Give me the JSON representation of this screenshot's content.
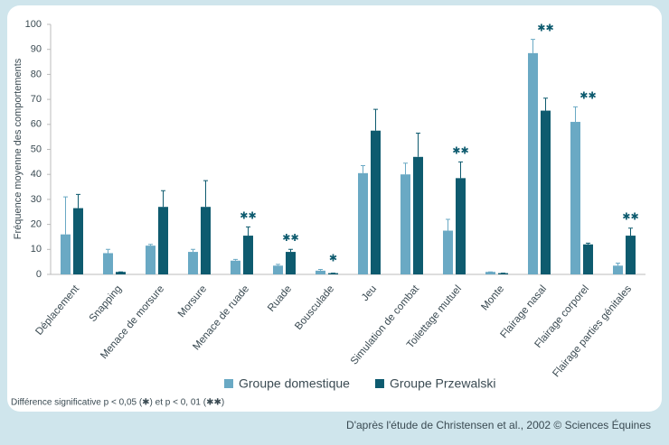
{
  "chart_data": {
    "type": "bar",
    "y_label": "Fréquence moyenne des comportements",
    "categories": [
      "Déplacement",
      "Snapping",
      "Menace de morsure",
      "Morsure",
      "Menace de ruade",
      "Ruade",
      "Bousculade",
      "Jeu",
      "Simulation de combat",
      "Toilettage mutuel",
      "Monte",
      "Flairage nasal",
      "Flairage corporel",
      "Flairage parties génitales"
    ],
    "series": [
      {
        "name": "Groupe domestique",
        "color": "#6aa9c4",
        "values": [
          16,
          8.5,
          11.5,
          9,
          5.5,
          3.5,
          1.5,
          40.5,
          40,
          17.5,
          1,
          88.5,
          61,
          3.5
        ],
        "errors": [
          15,
          1.5,
          0.5,
          1,
          0.5,
          0.5,
          0.5,
          3,
          4.5,
          4.5,
          0,
          5.5,
          6,
          1
        ]
      },
      {
        "name": "Groupe Przewalski",
        "color": "#0e5b6f",
        "values": [
          26.5,
          1,
          27,
          27,
          15.5,
          9,
          0.5,
          57.5,
          47,
          38.5,
          0.5,
          65.5,
          12,
          15.5
        ],
        "errors": [
          5.5,
          0,
          6.5,
          10.5,
          3.5,
          1,
          0,
          8.5,
          9.5,
          6.5,
          0,
          5,
          0.5,
          3
        ]
      }
    ],
    "significance": [
      null,
      null,
      null,
      null,
      "✱✱",
      "✱✱",
      "✱",
      null,
      null,
      "✱✱",
      null,
      "✱✱",
      "✱✱",
      "✱✱"
    ],
    "ylim": [
      0,
      100
    ],
    "yticks": [
      0,
      10,
      20,
      30,
      40,
      50,
      60,
      70,
      80,
      90,
      100
    ],
    "grid": false,
    "legend": "bottom",
    "footnote": "Différence significative p < 0,05 (✱) et p < 0, 01 (✱✱)",
    "source": "D'après l'étude de Christensen et al., 2002 © Sciences Équines"
  }
}
